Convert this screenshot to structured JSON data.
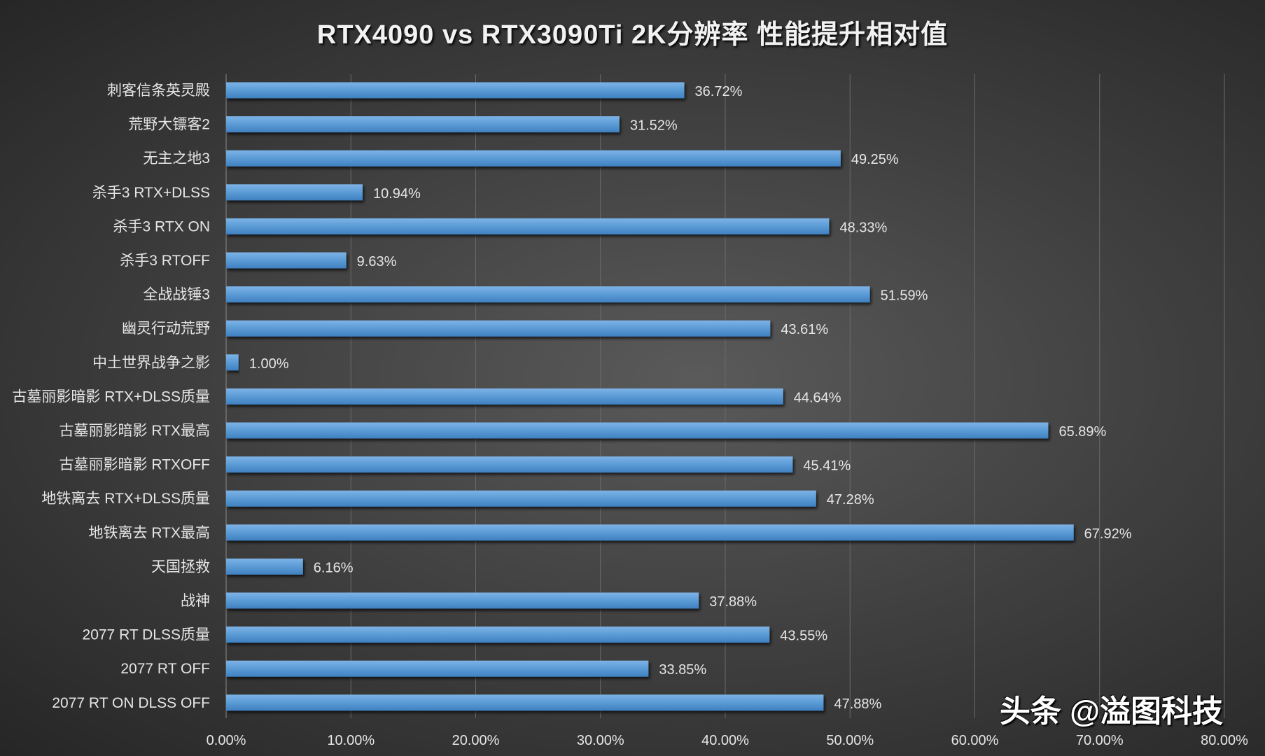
{
  "chart_data": {
    "type": "bar",
    "orientation": "horizontal",
    "title": "RTX4090 vs RTX3090Ti 2K分辨率 性能提升相对值",
    "categories": [
      "刺客信条英灵殿",
      "荒野大镖客2",
      "无主之地3",
      "杀手3 RTX+DLSS",
      "杀手3 RTX ON",
      "杀手3 RTOFF",
      "全战战锤3",
      "幽灵行动荒野",
      "中土世界战争之影",
      "古墓丽影暗影 RTX+DLSS质量",
      "古墓丽影暗影 RTX最高",
      "古墓丽影暗影 RTXOFF",
      "地铁离去 RTX+DLSS质量",
      "地铁离去 RTX最高",
      "天国拯救",
      "战神",
      "2077 RT DLSS质量",
      "2077 RT OFF",
      "2077 RT ON DLSS OFF"
    ],
    "values": [
      36.72,
      31.52,
      49.25,
      10.94,
      48.33,
      9.63,
      51.59,
      43.61,
      1.0,
      44.64,
      65.89,
      45.41,
      47.28,
      67.92,
      6.16,
      37.88,
      43.55,
      33.85,
      47.88
    ],
    "data_labels": [
      "36.72%",
      "31.52%",
      "49.25%",
      "10.94%",
      "48.33%",
      "9.63%",
      "51.59%",
      "43.61%",
      "1.00%",
      "44.64%",
      "65.89%",
      "45.41%",
      "47.28%",
      "67.92%",
      "6.16%",
      "37.88%",
      "43.55%",
      "33.85%",
      "47.88%"
    ],
    "xlim": [
      0,
      80
    ],
    "x_ticks": [
      "0.00%",
      "10.00%",
      "20.00%",
      "30.00%",
      "40.00%",
      "50.00%",
      "60.00%",
      "70.00%",
      "80.00%"
    ],
    "grid": true,
    "xlabel": "",
    "ylabel": "",
    "bar_color": "#5b9bd5",
    "background_color": "#3f3f3f"
  },
  "watermark": "头条 @溢图科技"
}
